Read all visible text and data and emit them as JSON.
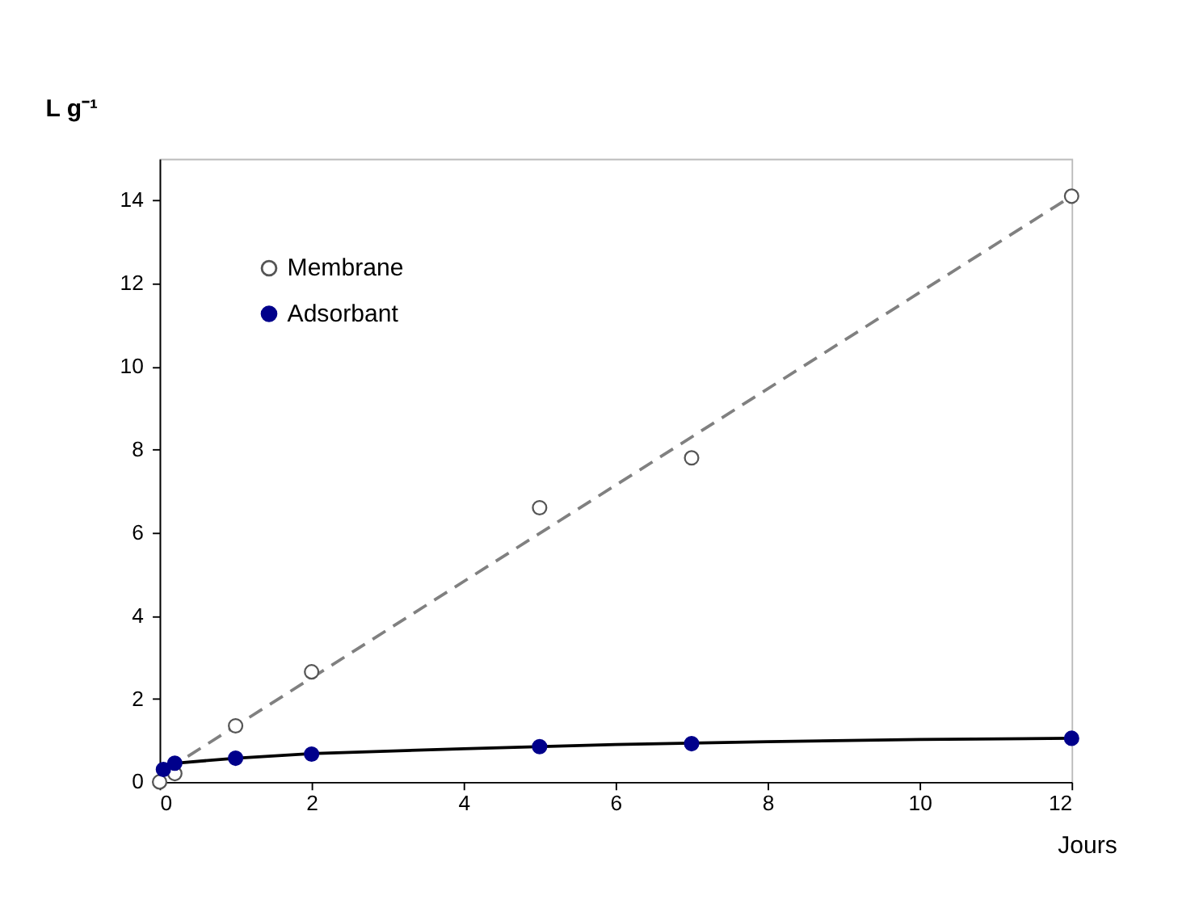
{
  "chart_data": {
    "type": "scatter",
    "ylabel": "L g⁻¹",
    "xlabel": "Jours",
    "xlim": [
      0,
      12
    ],
    "ylim": [
      0,
      15
    ],
    "xticks": [
      0,
      2,
      4,
      6,
      8,
      10,
      12
    ],
    "yticks": [
      0,
      2,
      4,
      6,
      8,
      10,
      12,
      14
    ],
    "grid": false,
    "legend": "top left",
    "marker": "circle",
    "series": [
      {
        "name": "Membrane",
        "color": "#ffffff",
        "x": [
          0,
          0.2,
          1,
          2,
          5,
          7,
          12
        ],
        "values": [
          0,
          0.2,
          1.35,
          2.65,
          6.6,
          7.8,
          14.1
        ]
      },
      {
        "name": "Adsorbant",
        "color": "#00008b",
        "x": [
          0.05,
          0.2,
          1,
          2,
          5,
          7,
          12
        ],
        "values": [
          0.3,
          0.45,
          0.57,
          0.67,
          0.85,
          0.92,
          1.05
        ]
      },
      {
        "type": "line",
        "color": "#808080",
        "line_style": "dashed",
        "marker": "none",
        "x": [
          0.1,
          12
        ],
        "values": [
          0.3,
          14.1
        ]
      },
      {
        "type": "line",
        "color": "#000000",
        "line_style": "solid",
        "marker": "none",
        "x": [
          0,
          0.2,
          1,
          2,
          4,
          6,
          8,
          10,
          12
        ],
        "values": [
          0.1,
          0.45,
          0.57,
          0.68,
          0.8,
          0.9,
          0.97,
          1.02,
          1.05
        ]
      }
    ]
  }
}
